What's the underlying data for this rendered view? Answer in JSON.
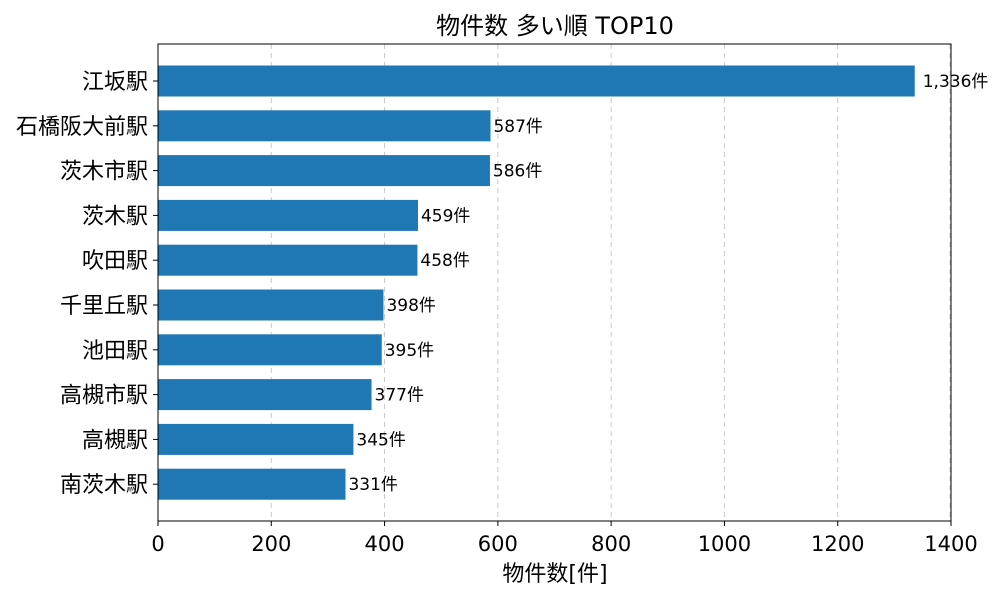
{
  "chart_data": {
    "type": "bar",
    "orientation": "horizontal",
    "title": "物件数 多い順 TOP10",
    "xlabel": "物件数[件]",
    "ylabel": "",
    "xlim": [
      0,
      1400
    ],
    "x_ticks": [
      0,
      200,
      400,
      600,
      800,
      1000,
      1200,
      1400
    ],
    "grid": "vertical dashed",
    "categories": [
      "江坂駅",
      "石橋阪大前駅",
      "茨木市駅",
      "茨木駅",
      "吹田駅",
      "千里丘駅",
      "池田駅",
      "高槻市駅",
      "高槻駅",
      "南茨木駅"
    ],
    "values": [
      1336,
      587,
      586,
      459,
      458,
      398,
      395,
      377,
      345,
      331
    ],
    "data_labels": [
      "1,336件",
      "587件",
      "586件",
      "459件",
      "458件",
      "398件",
      "395件",
      "377件",
      "345件",
      "331件"
    ],
    "bar_color": "#1f77b4"
  }
}
